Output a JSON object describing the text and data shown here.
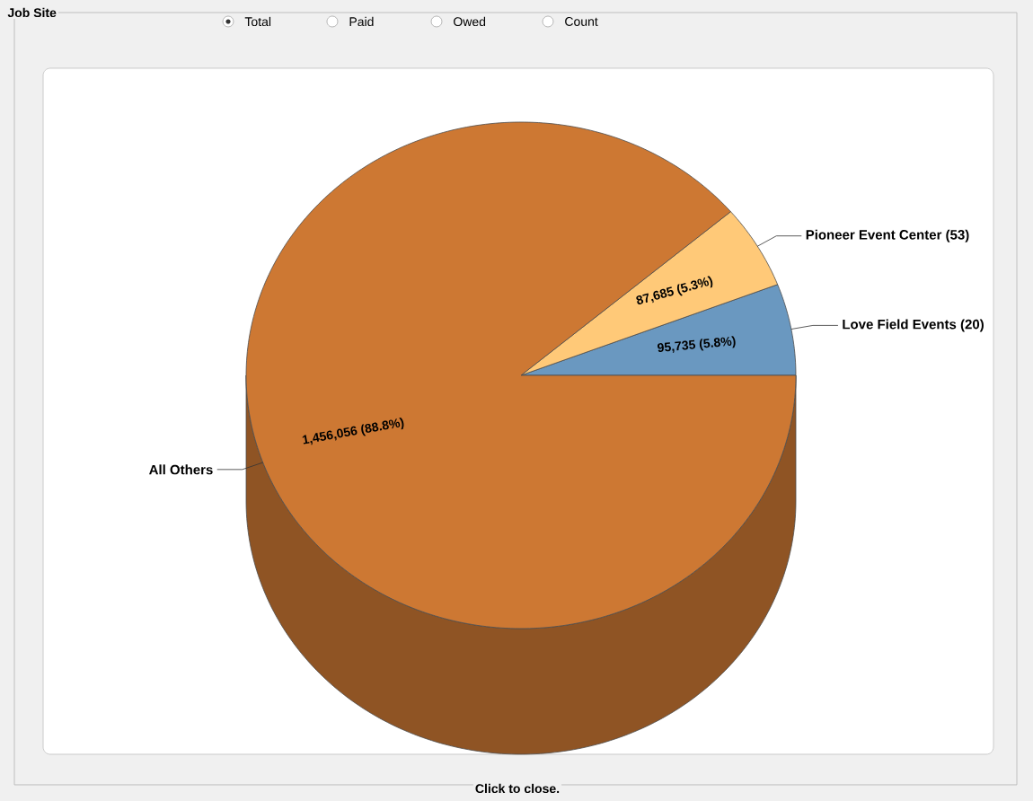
{
  "chart_data": {
    "type": "pie",
    "title": "Job Site",
    "categories": [
      "Love Field Events (20)",
      "Pioneer Event Center (53)",
      "All Others"
    ],
    "values": [
      95735,
      87685,
      1456056
    ],
    "colors": [
      "#6a98c0",
      "#ffc978",
      "#cd7833"
    ],
    "value_labels": [
      "95,735 (5.8%)",
      "87,685 (5.3%)",
      "1,456,056 (88.8%)"
    ],
    "annotations": [
      "Total",
      "Paid",
      "Owed",
      "Count",
      "Click to close."
    ]
  }
}
